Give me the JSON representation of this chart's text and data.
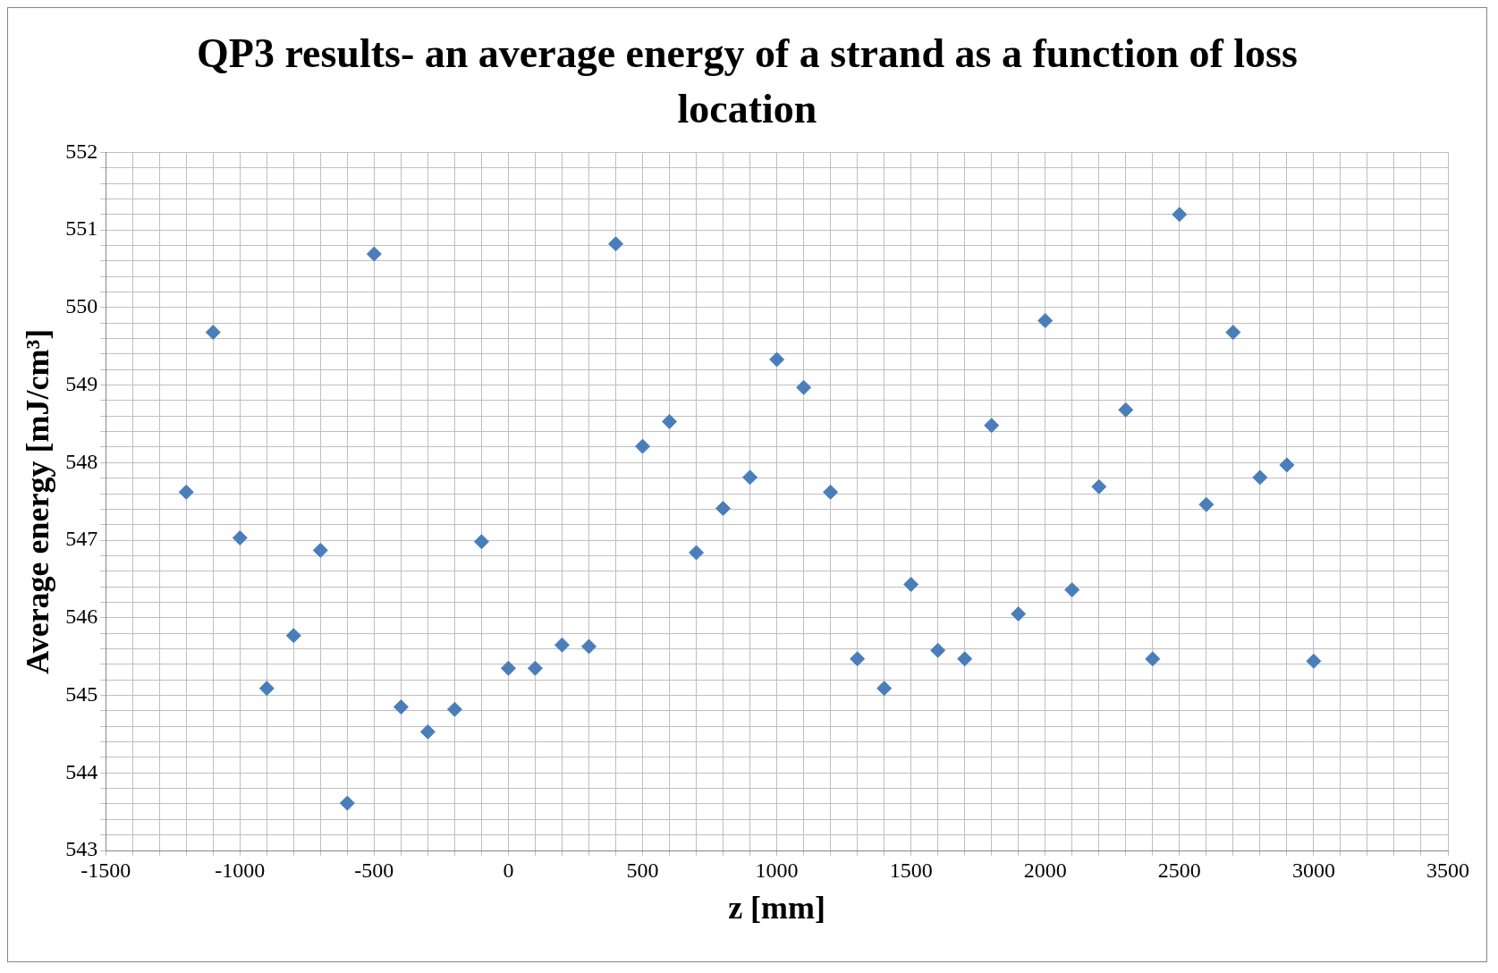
{
  "chart_data": {
    "type": "scatter",
    "title": "QP3 results- an average energy of a strand as a function of loss location",
    "xlabel": "z [mm]",
    "ylabel": "Average energy [mJ/cm³]",
    "x": [
      -1200,
      -1100,
      -1000,
      -900,
      -800,
      -700,
      -600,
      -500,
      -400,
      -300,
      -200,
      -100,
      0,
      100,
      200,
      300,
      400,
      500,
      600,
      700,
      800,
      900,
      1000,
      1100,
      1200,
      1300,
      1400,
      1500,
      1600,
      1700,
      1800,
      1900,
      2000,
      2100,
      2200,
      2300,
      2400,
      2500,
      2600,
      2700,
      2800,
      2900,
      3000
    ],
    "series": [
      {
        "color": "#4a7ebb",
        "values": [
          547.62,
          549.68,
          547.03,
          545.09,
          545.77,
          546.87,
          543.61,
          550.69,
          544.85,
          544.53,
          544.82,
          546.98,
          545.35,
          545.35,
          545.65,
          545.63,
          550.82,
          548.21,
          548.53,
          546.84,
          547.41,
          547.81,
          549.33,
          548.97,
          547.62,
          545.47,
          545.09,
          546.43,
          545.58,
          545.47,
          548.48,
          546.05,
          549.83,
          546.36,
          547.69,
          548.68,
          545.47,
          551.2,
          547.46,
          549.68,
          547.81,
          547.97,
          545.44
        ]
      }
    ],
    "xlim": [
      -1500,
      3500
    ],
    "xticks": [
      -1500,
      {
        "value": -1400,
        "label": null
      },
      {
        "value": -1300,
        "label": null
      },
      {
        "value": -1200,
        "label": null
      },
      {
        "value": -1100,
        "label": null
      },
      -1000,
      {
        "value": -900,
        "label": null
      },
      {
        "value": -800,
        "label": null
      },
      {
        "value": -700,
        "label": null
      },
      {
        "value": -600,
        "label": null
      },
      -500,
      {
        "value": -400,
        "label": null
      },
      {
        "value": -300,
        "label": null
      },
      {
        "value": -200,
        "label": null
      },
      {
        "value": -100,
        "label": null
      },
      0,
      {
        "value": 100,
        "label": null
      },
      {
        "value": 200,
        "label": null
      },
      {
        "value": 300,
        "label": null
      },
      {
        "value": 400,
        "label": null
      },
      500,
      {
        "value": 600,
        "label": null
      },
      {
        "value": 700,
        "label": null
      },
      {
        "value": 800,
        "label": null
      },
      {
        "value": 900,
        "label": null
      },
      1000,
      {
        "value": 1100,
        "label": null
      },
      {
        "value": 1200,
        "label": null
      },
      {
        "value": 1300,
        "label": null
      },
      {
        "value": 1400,
        "label": null
      },
      1500,
      {
        "value": 1600,
        "label": null
      },
      {
        "value": 1700,
        "label": null
      },
      {
        "value": 1800,
        "label": null
      },
      {
        "value": 1900,
        "label": null
      },
      2000,
      {
        "value": 2100,
        "label": null
      },
      {
        "value": 2200,
        "label": null
      },
      {
        "value": 2300,
        "label": null
      },
      {
        "value": 2400,
        "label": null
      },
      2500,
      {
        "value": 2600,
        "label": null
      },
      {
        "value": 2700,
        "label": null
      },
      {
        "value": 2800,
        "label": null
      },
      {
        "value": 2900,
        "label": null
      },
      3000,
      {
        "value": 3100,
        "label": null
      },
      {
        "value": 3200,
        "label": null
      },
      {
        "value": 3300,
        "label": null
      },
      {
        "value": 3400,
        "label": null
      },
      3500
    ],
    "ylim": [
      543,
      552
    ],
    "yticks": [
      543,
      {
        "value": 543.2,
        "label": null
      },
      {
        "value": 543.4,
        "label": null
      },
      {
        "value": 543.6,
        "label": null
      },
      {
        "value": 543.8,
        "label": null
      },
      544,
      {
        "value": 544.2,
        "label": null
      },
      {
        "value": 544.4,
        "label": null
      },
      {
        "value": 544.6,
        "label": null
      },
      {
        "value": 544.8,
        "label": null
      },
      545,
      {
        "value": 545.2,
        "label": null
      },
      {
        "value": 545.4,
        "label": null
      },
      {
        "value": 545.6,
        "label": null
      },
      {
        "value": 545.8,
        "label": null
      },
      546,
      {
        "value": 546.2,
        "label": null
      },
      {
        "value": 546.4,
        "label": null
      },
      {
        "value": 546.6,
        "label": null
      },
      {
        "value": 546.8,
        "label": null
      },
      547,
      {
        "value": 547.2,
        "label": null
      },
      {
        "value": 547.4,
        "label": null
      },
      {
        "value": 547.6,
        "label": null
      },
      {
        "value": 547.8,
        "label": null
      },
      548,
      {
        "value": 548.2,
        "label": null
      },
      {
        "value": 548.4,
        "label": null
      },
      {
        "value": 548.6,
        "label": null
      },
      {
        "value": 548.8,
        "label": null
      },
      549,
      {
        "value": 549.2,
        "label": null
      },
      {
        "value": 549.4,
        "label": null
      },
      {
        "value": 549.6,
        "label": null
      },
      {
        "value": 549.8,
        "label": null
      },
      550,
      {
        "value": 550.2,
        "label": null
      },
      {
        "value": 550.4,
        "label": null
      },
      {
        "value": 550.6,
        "label": null
      },
      {
        "value": 550.8,
        "label": null
      },
      551,
      {
        "value": 551.2,
        "label": null
      },
      {
        "value": 551.4,
        "label": null
      },
      {
        "value": 551.6,
        "label": null
      },
      {
        "value": 551.8,
        "label": null
      },
      552
    ],
    "grid": true,
    "marker": "diamond",
    "legend": false
  }
}
